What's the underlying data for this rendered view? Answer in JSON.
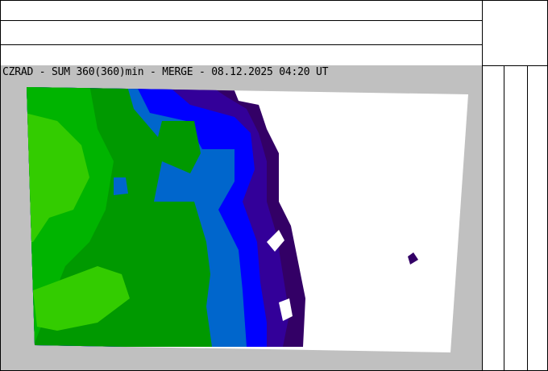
{
  "map": {
    "title": "CZRAD - SUM 360(360)min - MERGE - 08.12.2025 04:20 UT",
    "colors": {
      "background": "#c0c0c0",
      "no_precip": "#ffffff",
      "dark_purple": "#330066",
      "indigo": "#330099",
      "blue": "#0000ff",
      "steel_blue": "#0066cc",
      "green": "#009900",
      "mid_green": "#00b400",
      "light_green": "#33cc00"
    }
  }
}
